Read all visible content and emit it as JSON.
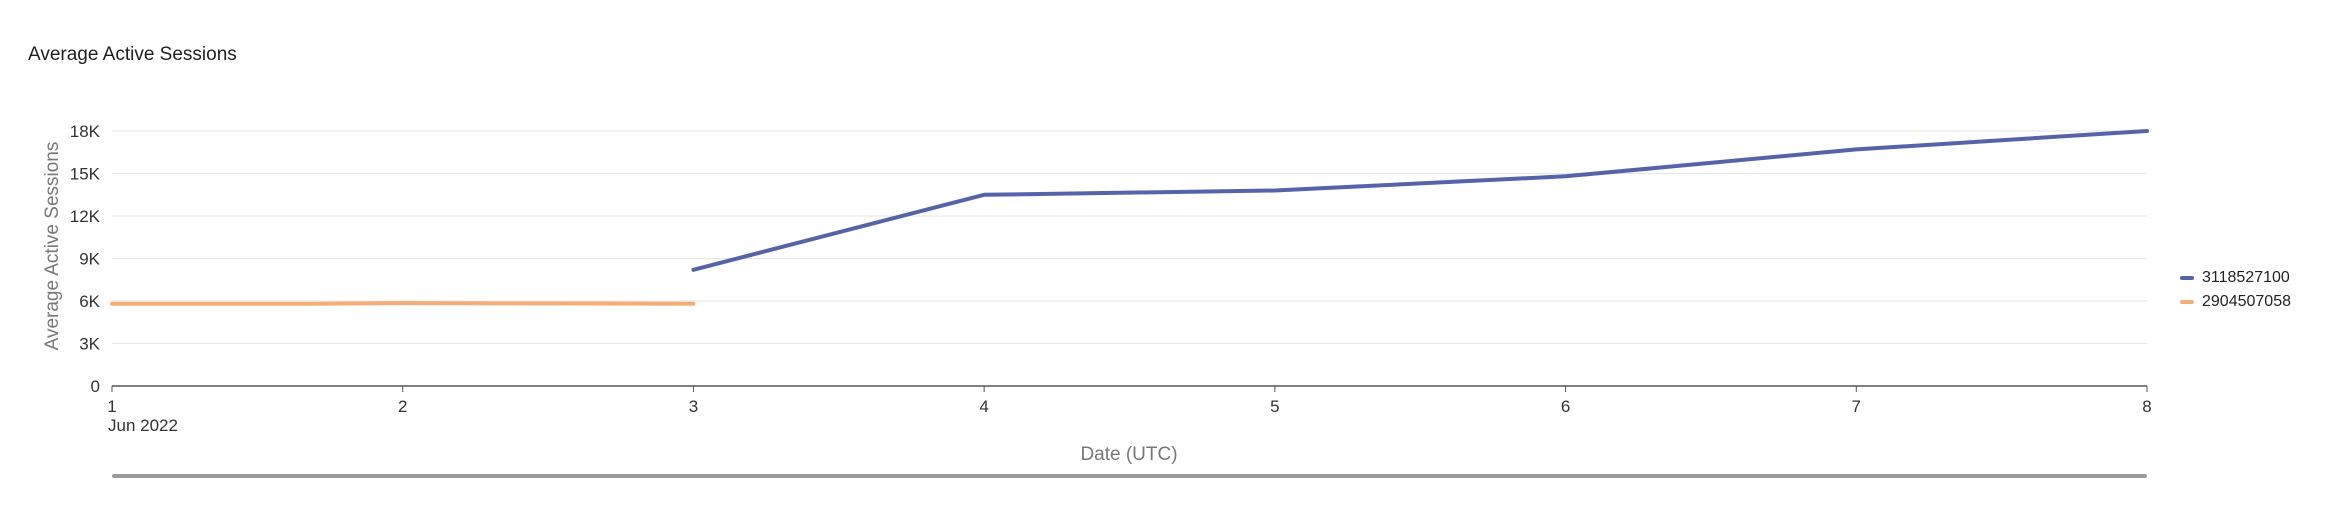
{
  "chart_data": {
    "type": "line",
    "title": "Average Active Sessions",
    "xlabel": "Date (UTC)",
    "ylabel": "Average Active Sessions",
    "x_ticks": [
      "1",
      "2",
      "3",
      "4",
      "5",
      "6",
      "7",
      "8"
    ],
    "x_subtick": "Jun 2022",
    "y_ticks": [
      "0",
      "3K",
      "6K",
      "9K",
      "12K",
      "15K",
      "18K"
    ],
    "xlim": [
      1,
      8
    ],
    "ylim": [
      0,
      18000
    ],
    "grid": true,
    "legend_position": "right",
    "series": [
      {
        "name": "3118527100",
        "color": "#5564a8",
        "x": [
          3,
          4,
          5,
          6,
          7,
          8
        ],
        "values": [
          8200,
          13500,
          13800,
          14800,
          16700,
          18000
        ]
      },
      {
        "name": "2904507058",
        "color": "#f2ae7a",
        "x": [
          1,
          1.7,
          2,
          3
        ],
        "values": [
          5800,
          5800,
          5850,
          5800
        ]
      }
    ]
  }
}
